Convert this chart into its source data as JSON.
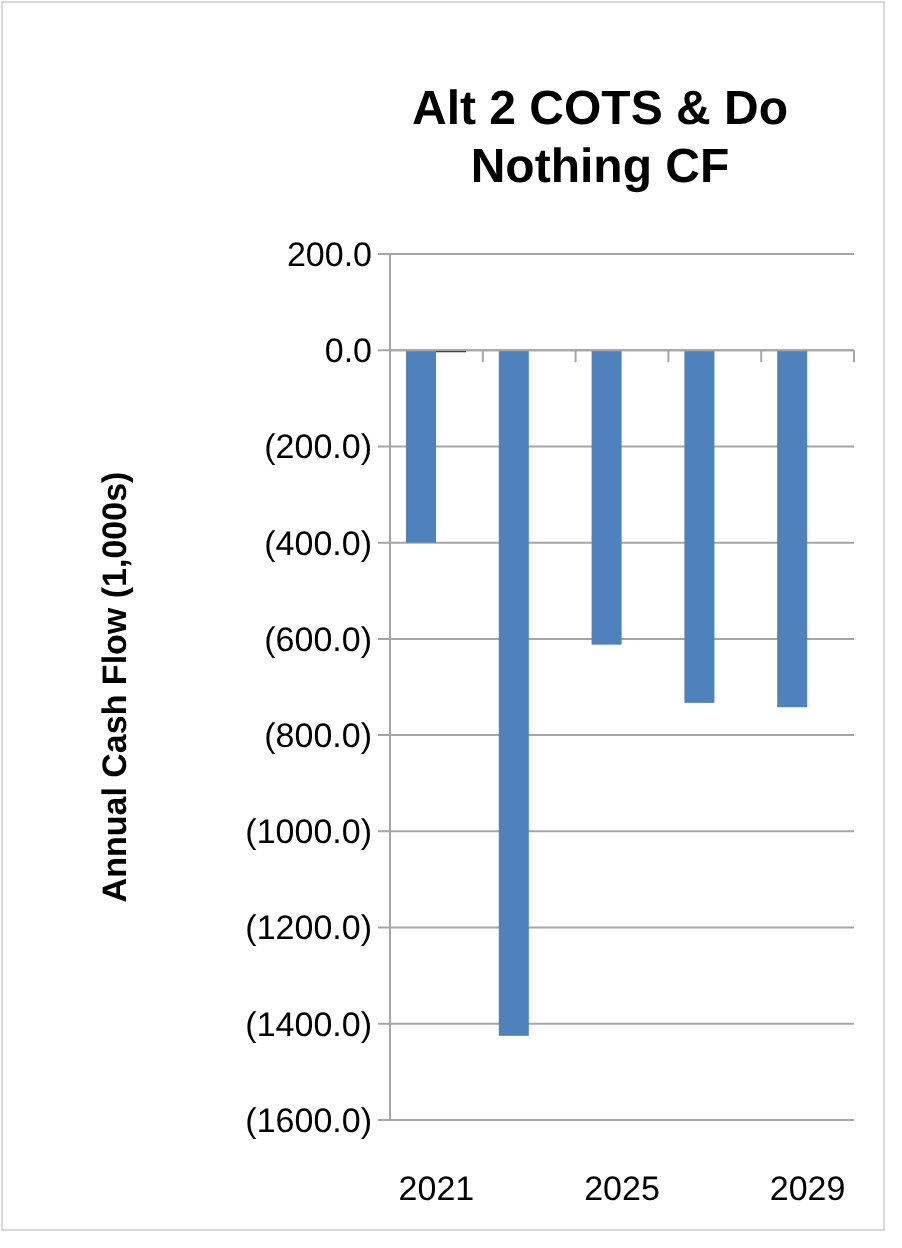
{
  "chart_data": {
    "type": "bar",
    "title": "Alt 2 COTS & Do Nothing CF",
    "ylabel": "Annual Cash Flow (1,000s)",
    "categories": [
      "2021",
      null,
      "2025",
      null,
      "2029"
    ],
    "series": [
      {
        "color": "#4f81bd",
        "values": [
          -400,
          -1425,
          -612,
          -733,
          -742
        ]
      },
      {
        "color": "#1f1f1f",
        "values": [
          0,
          null,
          null,
          null,
          null
        ]
      }
    ],
    "ylim": [
      -1600,
      200
    ],
    "yticks": [
      {
        "value": 200,
        "label": "200.0"
      },
      {
        "value": 0,
        "label": "0.0"
      },
      {
        "value": -200,
        "label": "(200.0)"
      },
      {
        "value": -400,
        "label": "(400.0)"
      },
      {
        "value": -600,
        "label": "(600.0)"
      },
      {
        "value": -800,
        "label": "(800.0)"
      },
      {
        "value": -1000,
        "label": "(1000.0)"
      },
      {
        "value": -1200,
        "label": "(1200.0)"
      },
      {
        "value": -1400,
        "label": "(1400.0)"
      },
      {
        "value": -1600,
        "label": "(1600.0)"
      }
    ],
    "grid": "y"
  }
}
